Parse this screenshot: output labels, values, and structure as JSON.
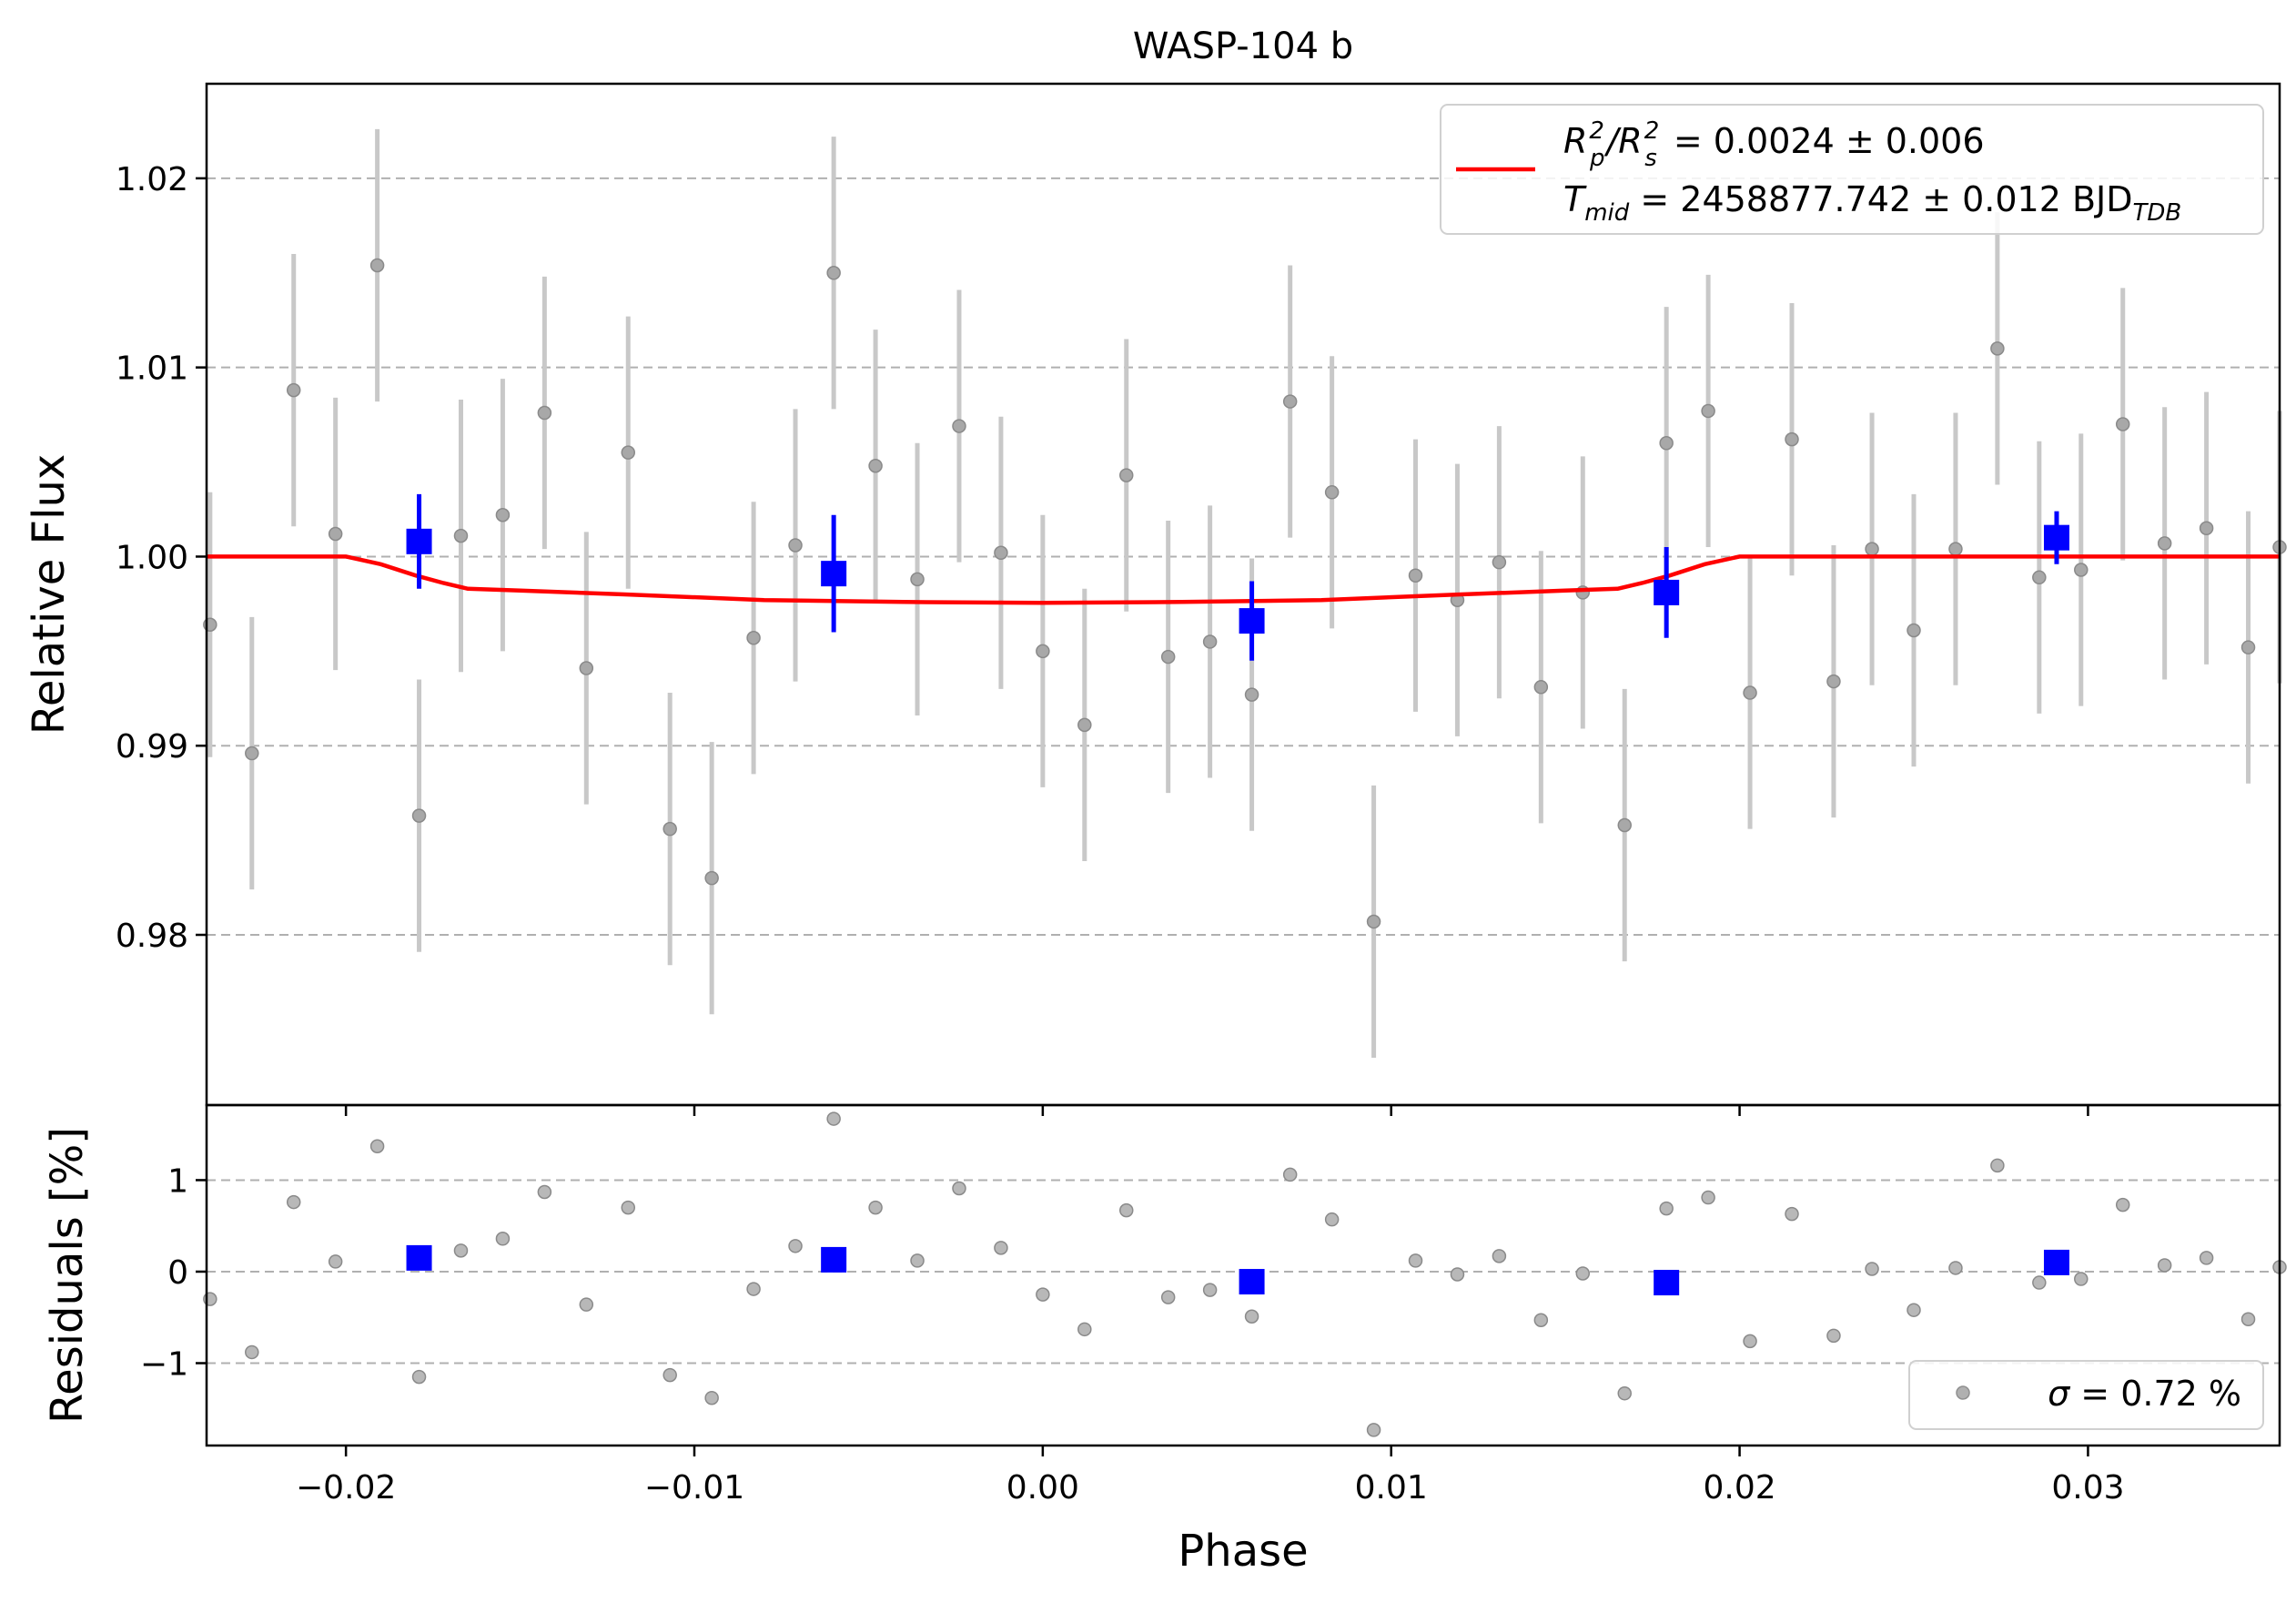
{
  "chart_data": [
    {
      "type": "scatter",
      "title": "WASP-104 b",
      "xlabel": "",
      "ylabel": "Relative Flux",
      "xlim": [
        -0.024,
        0.0355
      ],
      "ylim": [
        0.971,
        1.025
      ],
      "grid": "horizontal dashed",
      "x_ticks": [
        -0.02,
        -0.01,
        0.0,
        0.01,
        0.02,
        0.03
      ],
      "y_ticks": [
        0.98,
        0.99,
        1.0,
        1.01,
        1.02
      ],
      "y_tick_labels": [
        "0.98",
        "0.99",
        "1.00",
        "1.01",
        "1.02"
      ],
      "legend": {
        "placement": "top-right",
        "line1": {
          "prefix": "R",
          "sub1": "p",
          "sup1": "2",
          "mid": "/R",
          "sub2": "s",
          "sup2": "2",
          "rest": " = 0.0024 ± 0.006"
        },
        "line2": {
          "prefix": "T",
          "sub1": "mid",
          "rest": " = 2458877.742 ± 0.012 BJD",
          "sub2": "TDB"
        }
      },
      "colors": {
        "raw": "#808080",
        "errorbar": "#c8c8c8",
        "binned": "#0000ff",
        "model": "#ff0000",
        "grid": "#b0b0b0"
      },
      "series": [
        {
          "role": "raw",
          "points": [
            [
              -0.0239,
              0.9964,
              0.007
            ],
            [
              -0.0227,
              0.9896,
              0.0072
            ],
            [
              -0.0215,
              1.0088,
              0.0072
            ],
            [
              -0.0203,
              1.0012,
              0.0072
            ],
            [
              -0.0191,
              1.0154,
              0.0072
            ],
            [
              -0.0179,
              0.9863,
              0.0072
            ],
            [
              -0.0167,
              1.0011,
              0.0072
            ],
            [
              -0.0155,
              1.0022,
              0.0072
            ],
            [
              -0.0143,
              1.0076,
              0.0072
            ],
            [
              -0.0131,
              0.9941,
              0.0072
            ],
            [
              -0.0119,
              1.0055,
              0.0072
            ],
            [
              -0.0107,
              0.9856,
              0.0072
            ],
            [
              -0.0095,
              0.983,
              0.0072
            ],
            [
              -0.0083,
              0.9957,
              0.0072
            ],
            [
              -0.0071,
              1.0006,
              0.0072
            ],
            [
              -0.006,
              1.015,
              0.0072
            ],
            [
              -0.0048,
              1.0048,
              0.0072
            ],
            [
              -0.0036,
              0.9988,
              0.0072
            ],
            [
              -0.0024,
              1.0069,
              0.0072
            ],
            [
              -0.0012,
              1.0002,
              0.0072
            ],
            [
              0.0,
              0.995,
              0.0072
            ],
            [
              0.0012,
              0.9911,
              0.0072
            ],
            [
              0.0024,
              1.0043,
              0.0072
            ],
            [
              0.0036,
              0.9947,
              0.0072
            ],
            [
              0.0048,
              0.9955,
              0.0072
            ],
            [
              0.006,
              0.9927,
              0.0072
            ],
            [
              0.0071,
              1.0082,
              0.0072
            ],
            [
              0.0083,
              1.0034,
              0.0072
            ],
            [
              0.0095,
              0.9807,
              0.0072
            ],
            [
              0.0107,
              0.999,
              0.0072
            ],
            [
              0.0119,
              0.9977,
              0.0072
            ],
            [
              0.0131,
              0.9997,
              0.0072
            ],
            [
              0.0143,
              0.9931,
              0.0072
            ],
            [
              0.0155,
              0.9981,
              0.0072
            ],
            [
              0.0167,
              0.9858,
              0.0072
            ],
            [
              0.0179,
              1.006,
              0.0072
            ],
            [
              0.0191,
              1.0077,
              0.0072
            ],
            [
              0.0203,
              0.9928,
              0.0072
            ],
            [
              0.0215,
              1.0062,
              0.0072
            ],
            [
              0.0227,
              0.9934,
              0.0072
            ],
            [
              0.0238,
              1.0004,
              0.0072
            ],
            [
              0.025,
              0.9961,
              0.0072
            ],
            [
              0.0262,
              1.0004,
              0.0072
            ],
            [
              0.0274,
              1.011,
              0.0072
            ],
            [
              0.0286,
              0.9989,
              0.0072
            ],
            [
              0.0298,
              0.9993,
              0.0072
            ],
            [
              0.031,
              1.007,
              0.0072
            ],
            [
              0.0322,
              1.0007,
              0.0072
            ],
            [
              0.0334,
              1.0015,
              0.0072
            ],
            [
              0.0346,
              0.9952,
              0.0072
            ],
            [
              0.0355,
              1.0005,
              0.0072
            ]
          ]
        },
        {
          "role": "binned",
          "points": [
            [
              -0.0179,
              1.0008,
              0.0025
            ],
            [
              -0.006,
              0.9991,
              0.0031
            ],
            [
              0.006,
              0.9966,
              0.0021
            ],
            [
              0.0179,
              0.9981,
              0.0024
            ],
            [
              0.0291,
              1.001,
              0.0014
            ]
          ]
        },
        {
          "role": "model",
          "x": [
            -0.024,
            -0.02,
            -0.019,
            -0.018,
            -0.0172,
            -0.0165,
            -0.015,
            -0.012,
            -0.008,
            -0.004,
            0.0,
            0.004,
            0.008,
            0.012,
            0.015,
            0.0165,
            0.0172,
            0.018,
            0.019,
            0.02,
            0.0355
          ],
          "y": [
            1.0,
            1.0,
            0.9996,
            0.999,
            0.9986,
            0.9983,
            0.9982,
            0.998,
            0.9977,
            0.9976,
            0.99755,
            0.9976,
            0.9977,
            0.998,
            0.9982,
            0.9983,
            0.9986,
            0.999,
            0.9996,
            1.0,
            1.0
          ]
        }
      ]
    },
    {
      "type": "scatter",
      "title": "",
      "xlabel": "Phase",
      "ylabel": "Residuals [%]",
      "xlim": [
        -0.024,
        0.0355
      ],
      "ylim": [
        -1.9,
        1.82
      ],
      "grid": "horizontal dashed",
      "x_ticks": [
        -0.02,
        -0.01,
        0.0,
        0.01,
        0.02,
        0.03
      ],
      "x_tick_labels": [
        "−0.02",
        "−0.01",
        "0.00",
        "0.01",
        "0.02",
        "0.03"
      ],
      "y_ticks": [
        -1,
        0,
        1
      ],
      "y_tick_labels": [
        "−1",
        "0",
        "1"
      ],
      "legend": {
        "placement": "bottom-right",
        "sigma_symbol": "σ",
        "text": " = 0.72 %"
      },
      "series": [
        {
          "role": "raw",
          "x": [
            -0.0239,
            -0.0227,
            -0.0215,
            -0.0203,
            -0.0191,
            -0.0179,
            -0.0167,
            -0.0155,
            -0.0143,
            -0.0131,
            -0.0119,
            -0.0107,
            -0.0095,
            -0.0083,
            -0.0071,
            -0.006,
            -0.0048,
            -0.0036,
            -0.0024,
            -0.0012,
            0.0,
            0.0012,
            0.0024,
            0.0036,
            0.0048,
            0.006,
            0.0071,
            0.0083,
            0.0095,
            0.0107,
            0.0119,
            0.0131,
            0.0143,
            0.0155,
            0.0167,
            0.0179,
            0.0191,
            0.0203,
            0.0215,
            0.0227,
            0.0238,
            0.025,
            0.0262,
            0.0274,
            0.0286,
            0.0298,
            0.031,
            0.0322,
            0.0334,
            0.0346,
            0.0355
          ],
          "y": [
            -0.3,
            -0.88,
            0.76,
            0.11,
            1.37,
            -1.15,
            0.23,
            0.36,
            0.87,
            -0.36,
            0.7,
            -1.13,
            -1.38,
            -0.19,
            0.28,
            1.67,
            0.7,
            0.12,
            0.91,
            0.26,
            -0.25,
            -0.63,
            0.67,
            -0.28,
            -0.2,
            -0.49,
            1.06,
            0.57,
            -1.73,
            0.12,
            -0.03,
            0.17,
            -0.53,
            -0.02,
            -1.33,
            0.69,
            0.81,
            -0.76,
            0.63,
            -0.7,
            0.03,
            -0.42,
            0.04,
            1.16,
            -0.12,
            -0.08,
            0.73,
            0.07,
            0.15,
            -0.52,
            0.05
          ]
        },
        {
          "role": "binned",
          "x": [
            -0.0179,
            -0.006,
            0.006,
            0.0179,
            0.0291
          ],
          "y": [
            0.15,
            0.13,
            -0.11,
            -0.12,
            0.1
          ]
        }
      ]
    }
  ]
}
